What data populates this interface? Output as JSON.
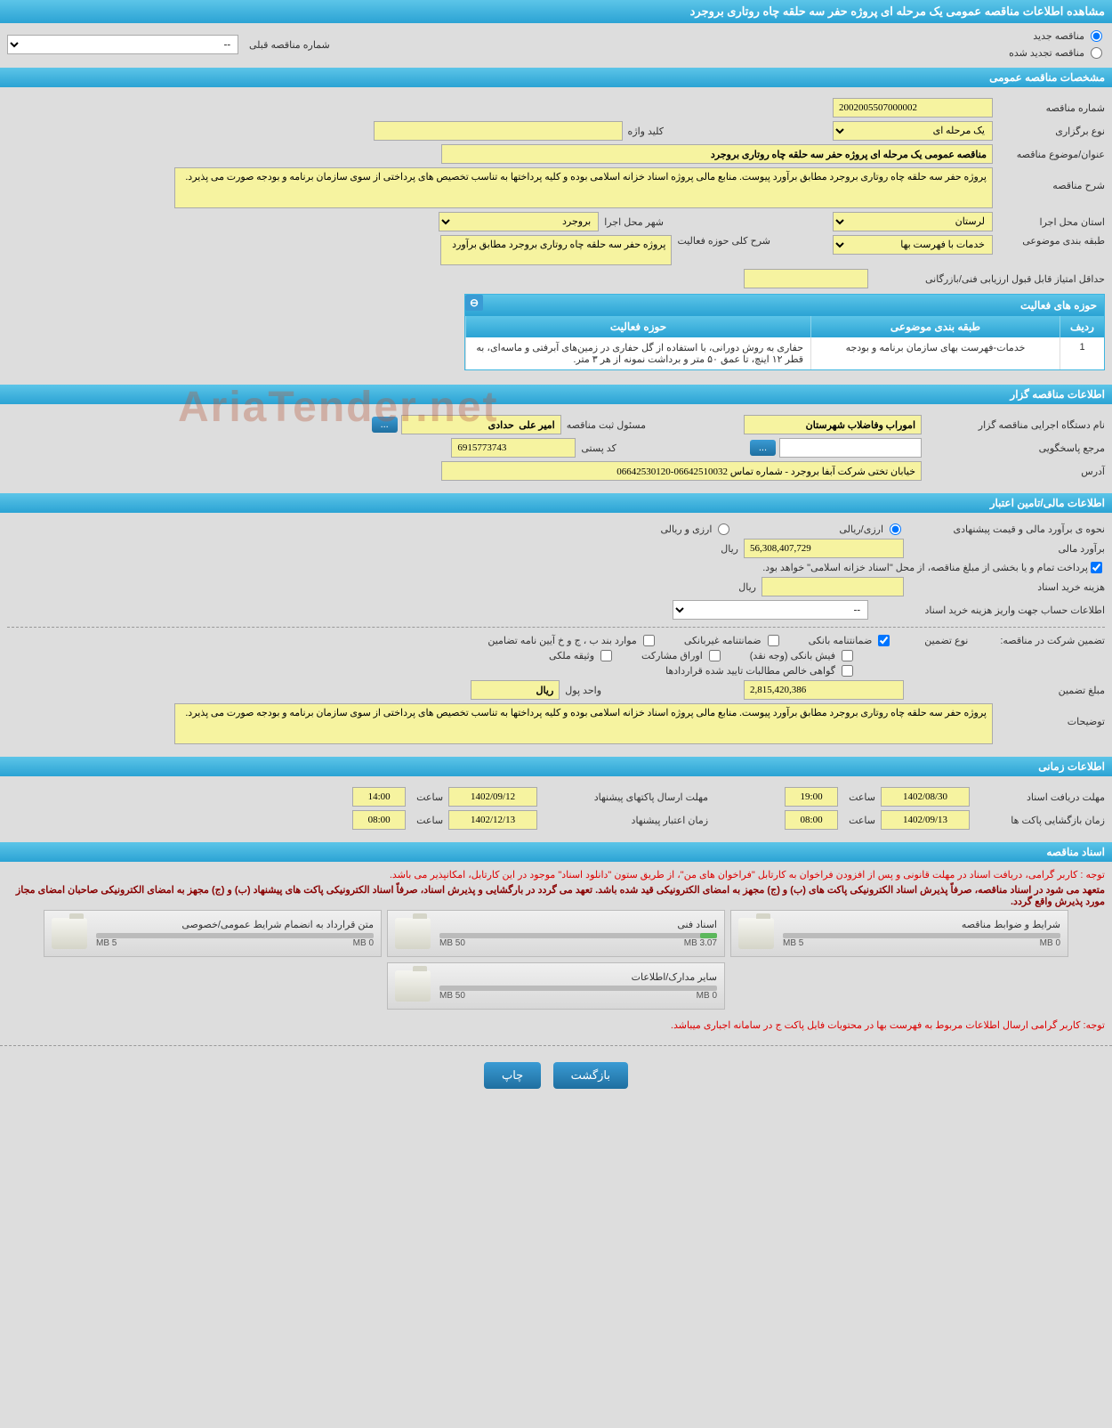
{
  "header": {
    "title": "مشاهده اطلاعات مناقصه عمومی یک مرحله ای پروژه حفر سه حلقه چاه روتاری بروجرد"
  },
  "tender_type": {
    "new_label": "مناقصه جدید",
    "renewed_label": "مناقصه تجدید شده",
    "prev_number_label": "شماره مناقصه قبلی",
    "prev_number_value": "--"
  },
  "sections": {
    "general": "مشخصات مناقصه عمومی",
    "activity": "حوزه های فعالیت",
    "organizer": "اطلاعات مناقصه گزار",
    "financial": "اطلاعات مالی/تامین اعتبار",
    "timing": "اطلاعات زمانی",
    "documents": "اسناد مناقصه"
  },
  "general": {
    "tender_no_label": "شماره مناقصه",
    "tender_no": "2002005507000002",
    "holding_type_label": "نوع برگزاری",
    "holding_type": "یک مرحله ای",
    "keyword_label": "کلید واژه",
    "keyword": "",
    "subject_label": "عنوان/موضوع مناقصه",
    "subject": "مناقصه عمومی یک مرحله ای پروژه حفر سه حلقه چاه روتاری بروجرد",
    "desc_label": "شرح مناقصه",
    "desc": "پروژه حفر سه حلقه چاه روتاری بروجرد مطابق برآورد پیوست. منابع مالی پروژه اسناد خزانه اسلامی بوده و کلیه پرداختها به تناسب تخصیص های پرداختی از سوی سازمان برنامه و بودجه صورت می پذیرد.",
    "province_label": "استان محل اجرا",
    "province": "لرستان",
    "city_label": "شهر محل اجرا",
    "city": "بروجرد",
    "category_label": "طبقه بندی موضوعی",
    "category": "خدمات با فهرست بها",
    "activity_scope_label": "شرح کلی حوزه فعالیت",
    "activity_scope": "پروژه حفر سه حلقه چاه روتاری بروجرد مطابق برآورد",
    "min_score_label": "حداقل امتیاز قابل قبول ارزیابی فنی/بازرگانی",
    "min_score": ""
  },
  "activity_grid": {
    "cols": {
      "row": "ردیف",
      "category": "طبقه بندی موضوعی",
      "scope": "حوزه فعالیت"
    },
    "rows": [
      {
        "row": "1",
        "category": "خدمات-فهرست بهای سازمان برنامه و بودجه",
        "scope": "حفاری به روش دورانی، با استفاده از گل حفاری در زمین‌های آبرفتی و ماسه‌ای، به قطر ۱۲ اینچ، تا عمق ۵۰ متر و برداشت نمونه از هر ۳ متر."
      }
    ]
  },
  "organizer": {
    "exec_label": "نام دستگاه اجرایی مناقصه گزار",
    "exec": "اموراب وفاضلاب شهرستان",
    "responsible_label": "مسئول ثبت مناقصه",
    "responsible": "امیر علی  حدادی",
    "more": "...",
    "ref_label": "مرجع پاسخگویی",
    "ref": "",
    "postal_label": "کد پستی",
    "postal": "6915773743",
    "address_label": "آدرس",
    "address": "خیابان تختی شرکت آبفا بروجرد - شماره تماس 06642510032-06642530120"
  },
  "financial": {
    "estimate_method_label": "نحوه ی برآورد مالی و قیمت پیشنهادی",
    "opt_rial": "ارزی/ریالی",
    "opt_currency": "ارزی و ریالی",
    "estimate_label": "برآورد مالی",
    "estimate": "56,308,407,729",
    "rial": "ریال",
    "treasury_note": "پرداخت تمام و یا بخشی از مبلغ مناقصه، از محل \"اسناد خزانه اسلامی\" خواهد بود.",
    "doc_cost_label": "هزینه خرید اسناد",
    "doc_cost": "",
    "account_label": "اطلاعات حساب جهت واریز هزینه خرید اسناد",
    "account_value": "--",
    "guarantee_label": "تضمین شرکت در مناقصه:",
    "guarantee_type_label": "نوع تضمین",
    "g_bank": "ضمانتنامه بانکی",
    "g_nonbank": "ضمانتنامه غیربانکی",
    "g_regs": "موارد بند ب ، ج و خ آیین نامه تضامین",
    "g_fish": "فیش بانکی (وجه نقد)",
    "g_stock": "اوراق مشارکت",
    "g_property": "وثیقه ملکی",
    "g_cert": "گواهی خالص مطالبات تایید شده قراردادها",
    "guarantee_amount_label": "مبلغ تضمین",
    "guarantee_amount": "2,815,420,386",
    "currency_unit_label": "واحد پول",
    "currency_unit": "ریال",
    "notes_label": "توضیحات",
    "notes": "پروژه حفر سه حلقه چاه روتاری بروجرد مطابق برآورد پیوست. منابع مالی پروژه اسناد خزانه اسلامی بوده و کلیه پرداختها به تناسب تخصیص های پرداختی از سوی سازمان برنامه و بودجه صورت می پذیرد."
  },
  "timing": {
    "doc_deadline_label": "مهلت دریافت اسناد",
    "doc_deadline_date": "1402/08/30",
    "doc_deadline_time": "19:00",
    "envelope_deadline_label": "مهلت ارسال پاکتهای پیشنهاد",
    "envelope_deadline_date": "1402/09/12",
    "envelope_deadline_time": "14:00",
    "opening_label": "زمان بازگشایی پاکت ها",
    "opening_date": "1402/09/13",
    "opening_time": "08:00",
    "validity_label": "زمان اعتبار پیشنهاد",
    "validity_date": "1402/12/13",
    "validity_time": "08:00",
    "time_label": "ساعت"
  },
  "documents": {
    "note1": "توجه : کاربر گرامی، دریافت اسناد در مهلت قانونی و پس از افزودن فراخوان به کارتابل \"فراخوان های من\"، از طریق ستون \"دانلود اسناد\" موجود در این کارتابل، امکانپذیر می باشد.",
    "note2": "متعهد می شود در اسناد مناقصه، صرفاً پذیرش اسناد الکترونیکی پاکت های (ب) و (ج) مجهز به امضای الکترونیکی قید شده باشد. تعهد می گردد در بارگشایی و پذیرش اسناد، صرفاً اسناد الکترونیکی پاکت های پیشنهاد (ب) و (ج) مجهز به امضای الکترونیکی صاحبان امضای مجاز مورد پذیرش واقع گردد.",
    "note3": "توجه: کاربر گرامی ارسال اطلاعات مربوط به فهرست بها در محتویات فایل پاکت ج در سامانه اجباری میباشد.",
    "files": [
      {
        "title": "شرایط و ضوابط مناقصه",
        "used": "0 MB",
        "total": "5 MB",
        "pct": 0
      },
      {
        "title": "اسناد فنی",
        "used": "3.07 MB",
        "total": "50 MB",
        "pct": 6
      },
      {
        "title": "متن قرارداد به انضمام شرایط عمومی/خصوصی",
        "used": "0 MB",
        "total": "5 MB",
        "pct": 0
      },
      {
        "title": "سایر مدارک/اطلاعات",
        "used": "0 MB",
        "total": "50 MB",
        "pct": 0
      }
    ]
  },
  "buttons": {
    "back": "بازگشت",
    "print": "چاپ"
  },
  "watermark": "AriaTender.net"
}
